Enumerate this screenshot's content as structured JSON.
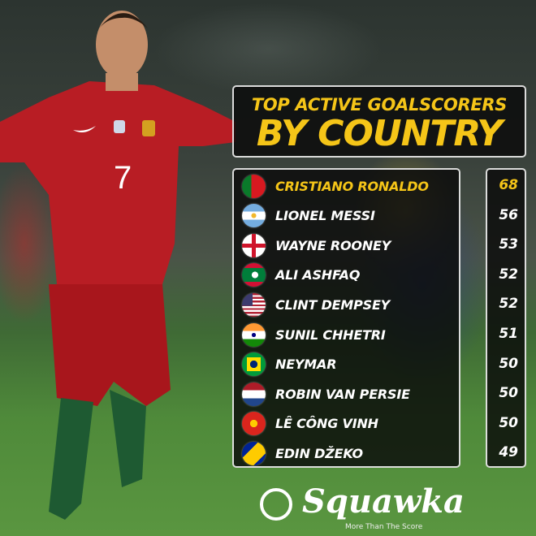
{
  "title": {
    "line1": "TOP ACTIVE GOALSCORERS",
    "line2": "BY COUNTRY"
  },
  "accent_color": "#f5c518",
  "players": [
    {
      "name": "CRISTIANO RONALDO",
      "country_flag": "portugal-flag",
      "goals": "68",
      "highlight": true
    },
    {
      "name": "LIONEL MESSI",
      "country_flag": "argentina-flag",
      "goals": "56"
    },
    {
      "name": "WAYNE ROONEY",
      "country_flag": "england-flag",
      "goals": "53"
    },
    {
      "name": "ALI  ASHFAQ",
      "country_flag": "maldives-flag",
      "goals": "52"
    },
    {
      "name": "CLINT DEMPSEY",
      "country_flag": "usa-flag",
      "goals": "52"
    },
    {
      "name": "SUNIL CHHETRI",
      "country_flag": "india-flag",
      "goals": "51"
    },
    {
      "name": "NEYMAR",
      "country_flag": "brazil-flag",
      "goals": "50"
    },
    {
      "name": "ROBIN VAN PERSIE",
      "country_flag": "netherlands-flag",
      "goals": "50"
    },
    {
      "name": "LÊ CÔNG VINH",
      "country_flag": "vietnam-flag",
      "goals": "50"
    },
    {
      "name": "EDIN DŽEKO",
      "country_flag": "bosnia-flag",
      "goals": "49"
    }
  ],
  "logo": {
    "brand": "Squawka",
    "tagline": "More Than The Score"
  },
  "photo": {
    "jersey_number": "7"
  }
}
